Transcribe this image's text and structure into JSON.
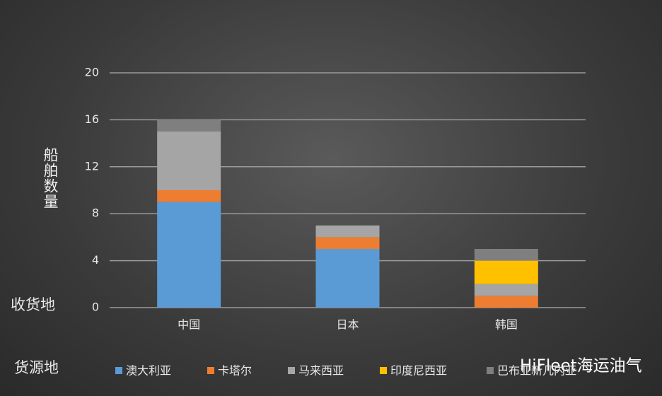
{
  "chart_data": {
    "type": "stacked_bar",
    "y_label": "船舶数量",
    "x_label": "收货地",
    "legend_title": "货源地",
    "watermark": "HiFleet海运油气",
    "categories": [
      "中国",
      "日本",
      "韩国"
    ],
    "series": [
      {
        "name": "澳大利亚",
        "color": "#5b9bd5",
        "values": [
          9,
          5,
          0
        ]
      },
      {
        "name": "卡塔尔",
        "color": "#ed7d31",
        "values": [
          1,
          1,
          1
        ]
      },
      {
        "name": "马来西亚",
        "color": "#a5a5a5",
        "values": [
          5,
          1,
          1
        ]
      },
      {
        "name": "印度尼西亚",
        "color": "#ffc000",
        "values": [
          0,
          0,
          2
        ]
      },
      {
        "name": "巴布亚新几内亚",
        "color": "#7f7f7f",
        "values": [
          1,
          0,
          1
        ]
      }
    ],
    "ylim": [
      0,
      20
    ],
    "yticks": [
      0,
      4,
      8,
      12,
      16,
      20
    ],
    "grid": true,
    "legend": "bottom"
  }
}
